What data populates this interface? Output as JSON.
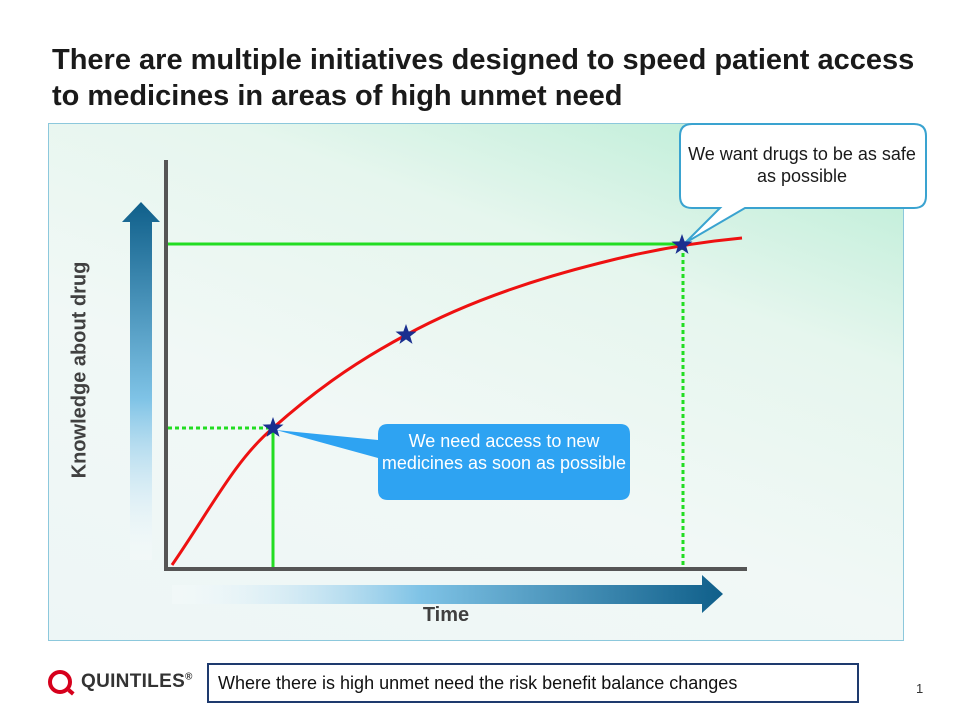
{
  "title": "There are multiple initiatives designed to speed patient access to medicines in areas of high unmet need",
  "diagram": {
    "y_axis_label": "Knowledge about drug",
    "x_axis_label": "Time",
    "callout_top": "We want drugs to be as safe as possible",
    "callout_mid": "We need access to new medicines as soon as possible",
    "colors": {
      "curve": "#ee1111",
      "guides": "#22dd22",
      "stars": "#1a2f8f",
      "arrow_dark": "#0f5f8a",
      "callout_mid_fill": "#2ea3f2",
      "callout_top_border": "#3aa3d0"
    }
  },
  "footer": {
    "brand": "QUINTILES",
    "brand_mark": "®",
    "message": "Where there is high unmet need the risk benefit balance changes",
    "page_number": "1"
  }
}
